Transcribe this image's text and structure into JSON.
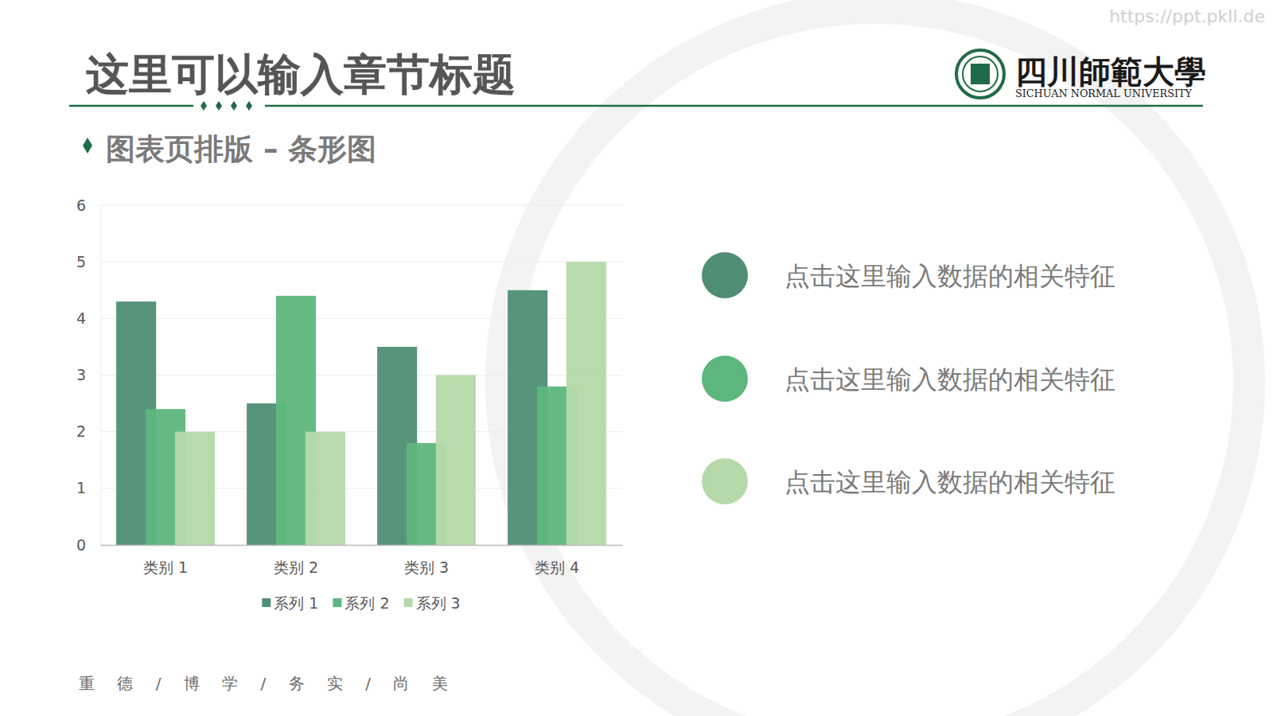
{
  "slide": {
    "watermark": "https://ppt.pkll.de",
    "title": "这里可以输入章节标题",
    "university_name": "四川師範大學",
    "university_name_en": "SICHUAN NORMAL UNIVERSITY",
    "subtitle": "图表页排版 – 条形图",
    "features": [
      "点击这里输入数据的相关特征",
      "点击这里输入数据的相关特征",
      "点击这里输入数据的相关特征"
    ],
    "motto": "重 德 / 博 学 / 务 实 / 尚 美"
  },
  "chart_data": {
    "type": "bar",
    "categories": [
      "类别 1",
      "类别 2",
      "类别 3",
      "类别 4"
    ],
    "series": [
      {
        "name": "系列 1",
        "color": "#4f8e74",
        "values": [
          4.3,
          2.5,
          3.5,
          4.5
        ]
      },
      {
        "name": "系列 2",
        "color": "#5db67d",
        "values": [
          2.4,
          4.4,
          1.8,
          2.8
        ]
      },
      {
        "name": "系列 3",
        "color": "#b5d9a8",
        "values": [
          2,
          2,
          3,
          5
        ]
      }
    ],
    "ylim": [
      0,
      6
    ],
    "yticks": [
      0,
      1,
      2,
      3,
      4,
      5,
      6
    ],
    "grid": true,
    "legend": "bottom"
  }
}
